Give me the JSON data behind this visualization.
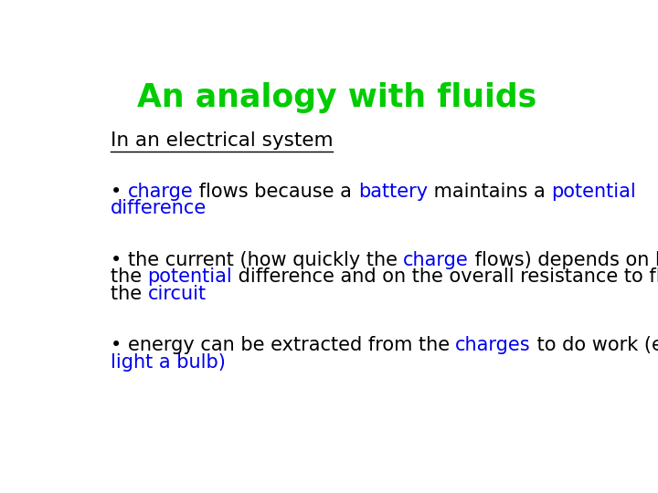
{
  "title": "An analogy with fluids",
  "title_color": "#00CC00",
  "title_fontsize": 25,
  "bg_color": "#ffffff",
  "subtitle": "In an electrical system",
  "subtitle_color": "#000000",
  "subtitle_fontsize": 15.5,
  "body_fontsize": 15.0,
  "bullet1": [
    [
      {
        "text": "• ",
        "color": "#000000"
      },
      {
        "text": "charge",
        "color": "#0000EE"
      },
      {
        "text": " flows because a ",
        "color": "#000000"
      },
      {
        "text": "battery",
        "color": "#0000EE"
      },
      {
        "text": " maintains a ",
        "color": "#000000"
      },
      {
        "text": "potential",
        "color": "#0000EE"
      }
    ],
    [
      {
        "text": "difference",
        "color": "#0000EE"
      }
    ]
  ],
  "bullet2": [
    [
      {
        "text": "• ",
        "color": "#000000"
      },
      {
        "text": "the current (how quickly the ",
        "color": "#000000"
      },
      {
        "text": "charge",
        "color": "#0000EE"
      },
      {
        "text": " flows) depends on both",
        "color": "#000000"
      }
    ],
    [
      {
        "text": "the ",
        "color": "#000000"
      },
      {
        "text": "potential",
        "color": "#0000EE"
      },
      {
        "text": " difference and on the overall resistance to flow in",
        "color": "#000000"
      }
    ],
    [
      {
        "text": "the ",
        "color": "#000000"
      },
      {
        "text": "circuit",
        "color": "#0000EE"
      }
    ]
  ],
  "bullet3": [
    [
      {
        "text": "• ",
        "color": "#000000"
      },
      {
        "text": "energy can be extracted from the ",
        "color": "#000000"
      },
      {
        "text": "charges",
        "color": "#0000EE"
      },
      {
        "text": " to do work (e.g.,",
        "color": "#000000"
      }
    ],
    [
      {
        "text": "light a bulb)",
        "color": "#0000EE"
      }
    ]
  ]
}
